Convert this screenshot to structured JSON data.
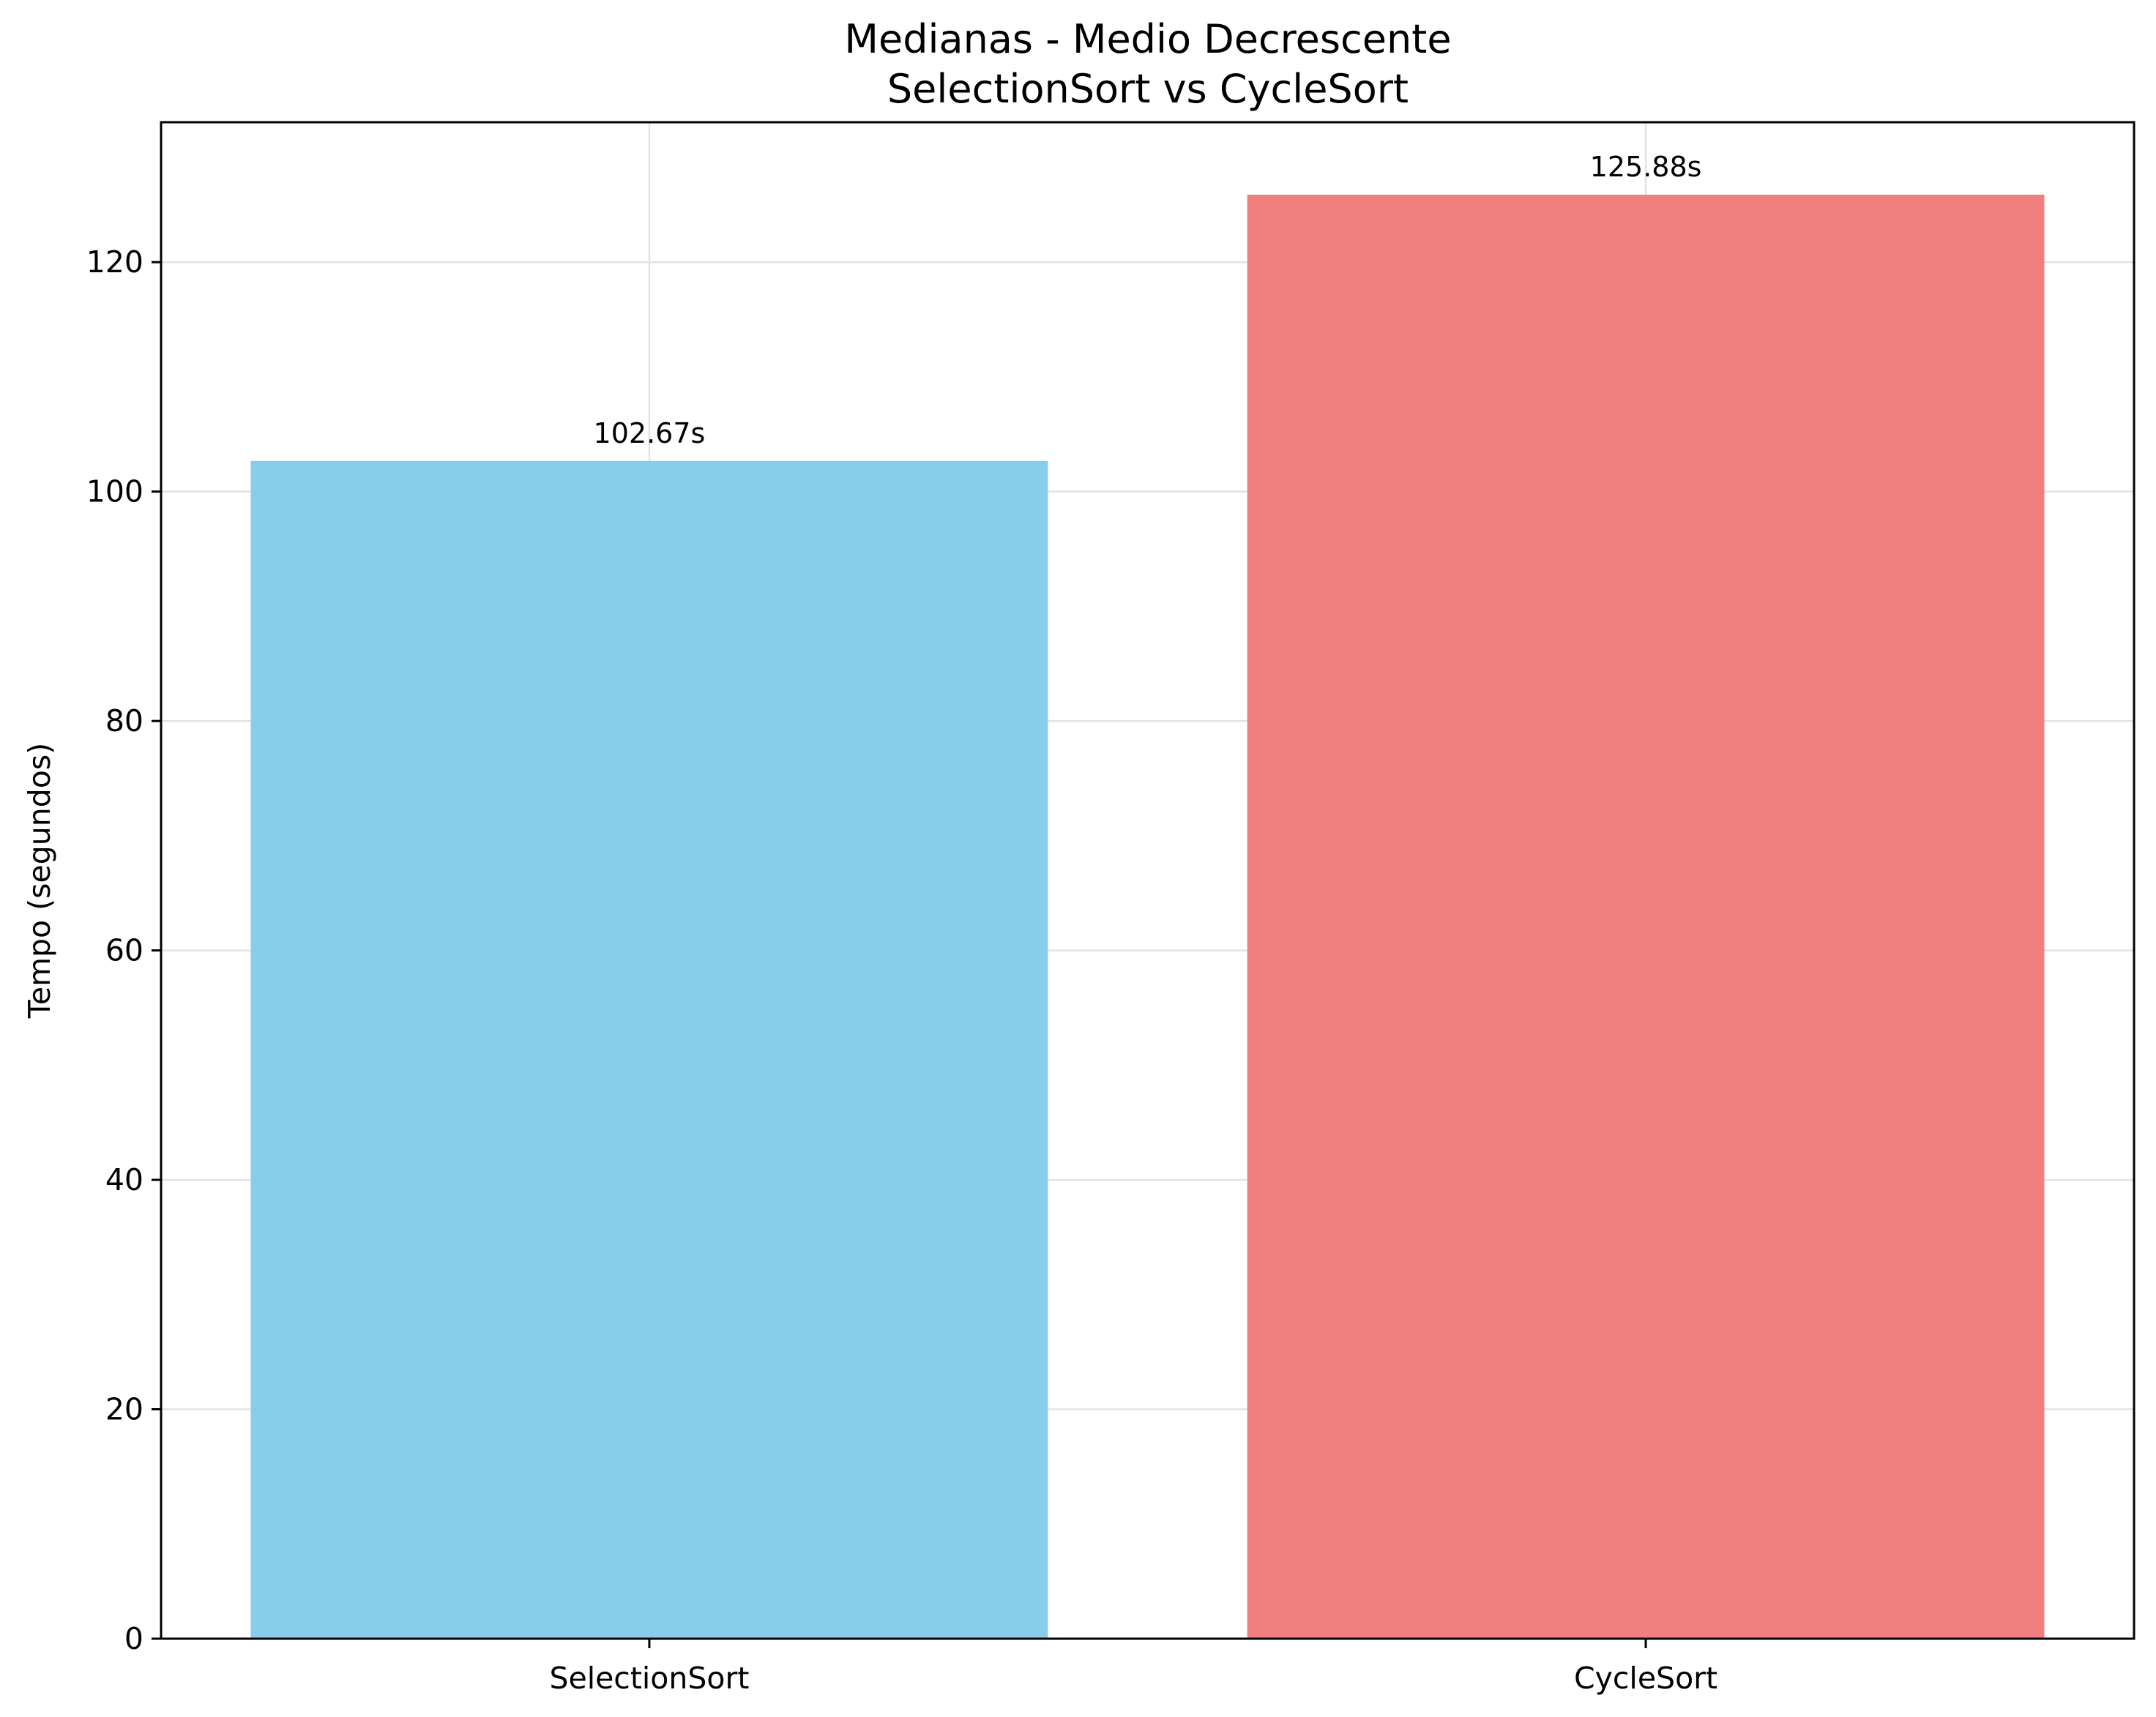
{
  "chart_data": {
    "type": "bar",
    "title": "Medianas - Medio Decrescente",
    "subtitle": "SelectionSort vs CycleSort",
    "xlabel": "",
    "ylabel": "Tempo (segundos)",
    "categories": [
      "SelectionSort",
      "CycleSort"
    ],
    "values": [
      102.67,
      125.88
    ],
    "data_labels": [
      "102.67s",
      "125.88s"
    ],
    "colors": [
      "#87CEEB",
      "#F08080"
    ],
    "ylim": [
      0,
      132.2
    ],
    "yticks": [
      0,
      20,
      40,
      60,
      80,
      100,
      120
    ],
    "grid": true,
    "legend": "none"
  }
}
